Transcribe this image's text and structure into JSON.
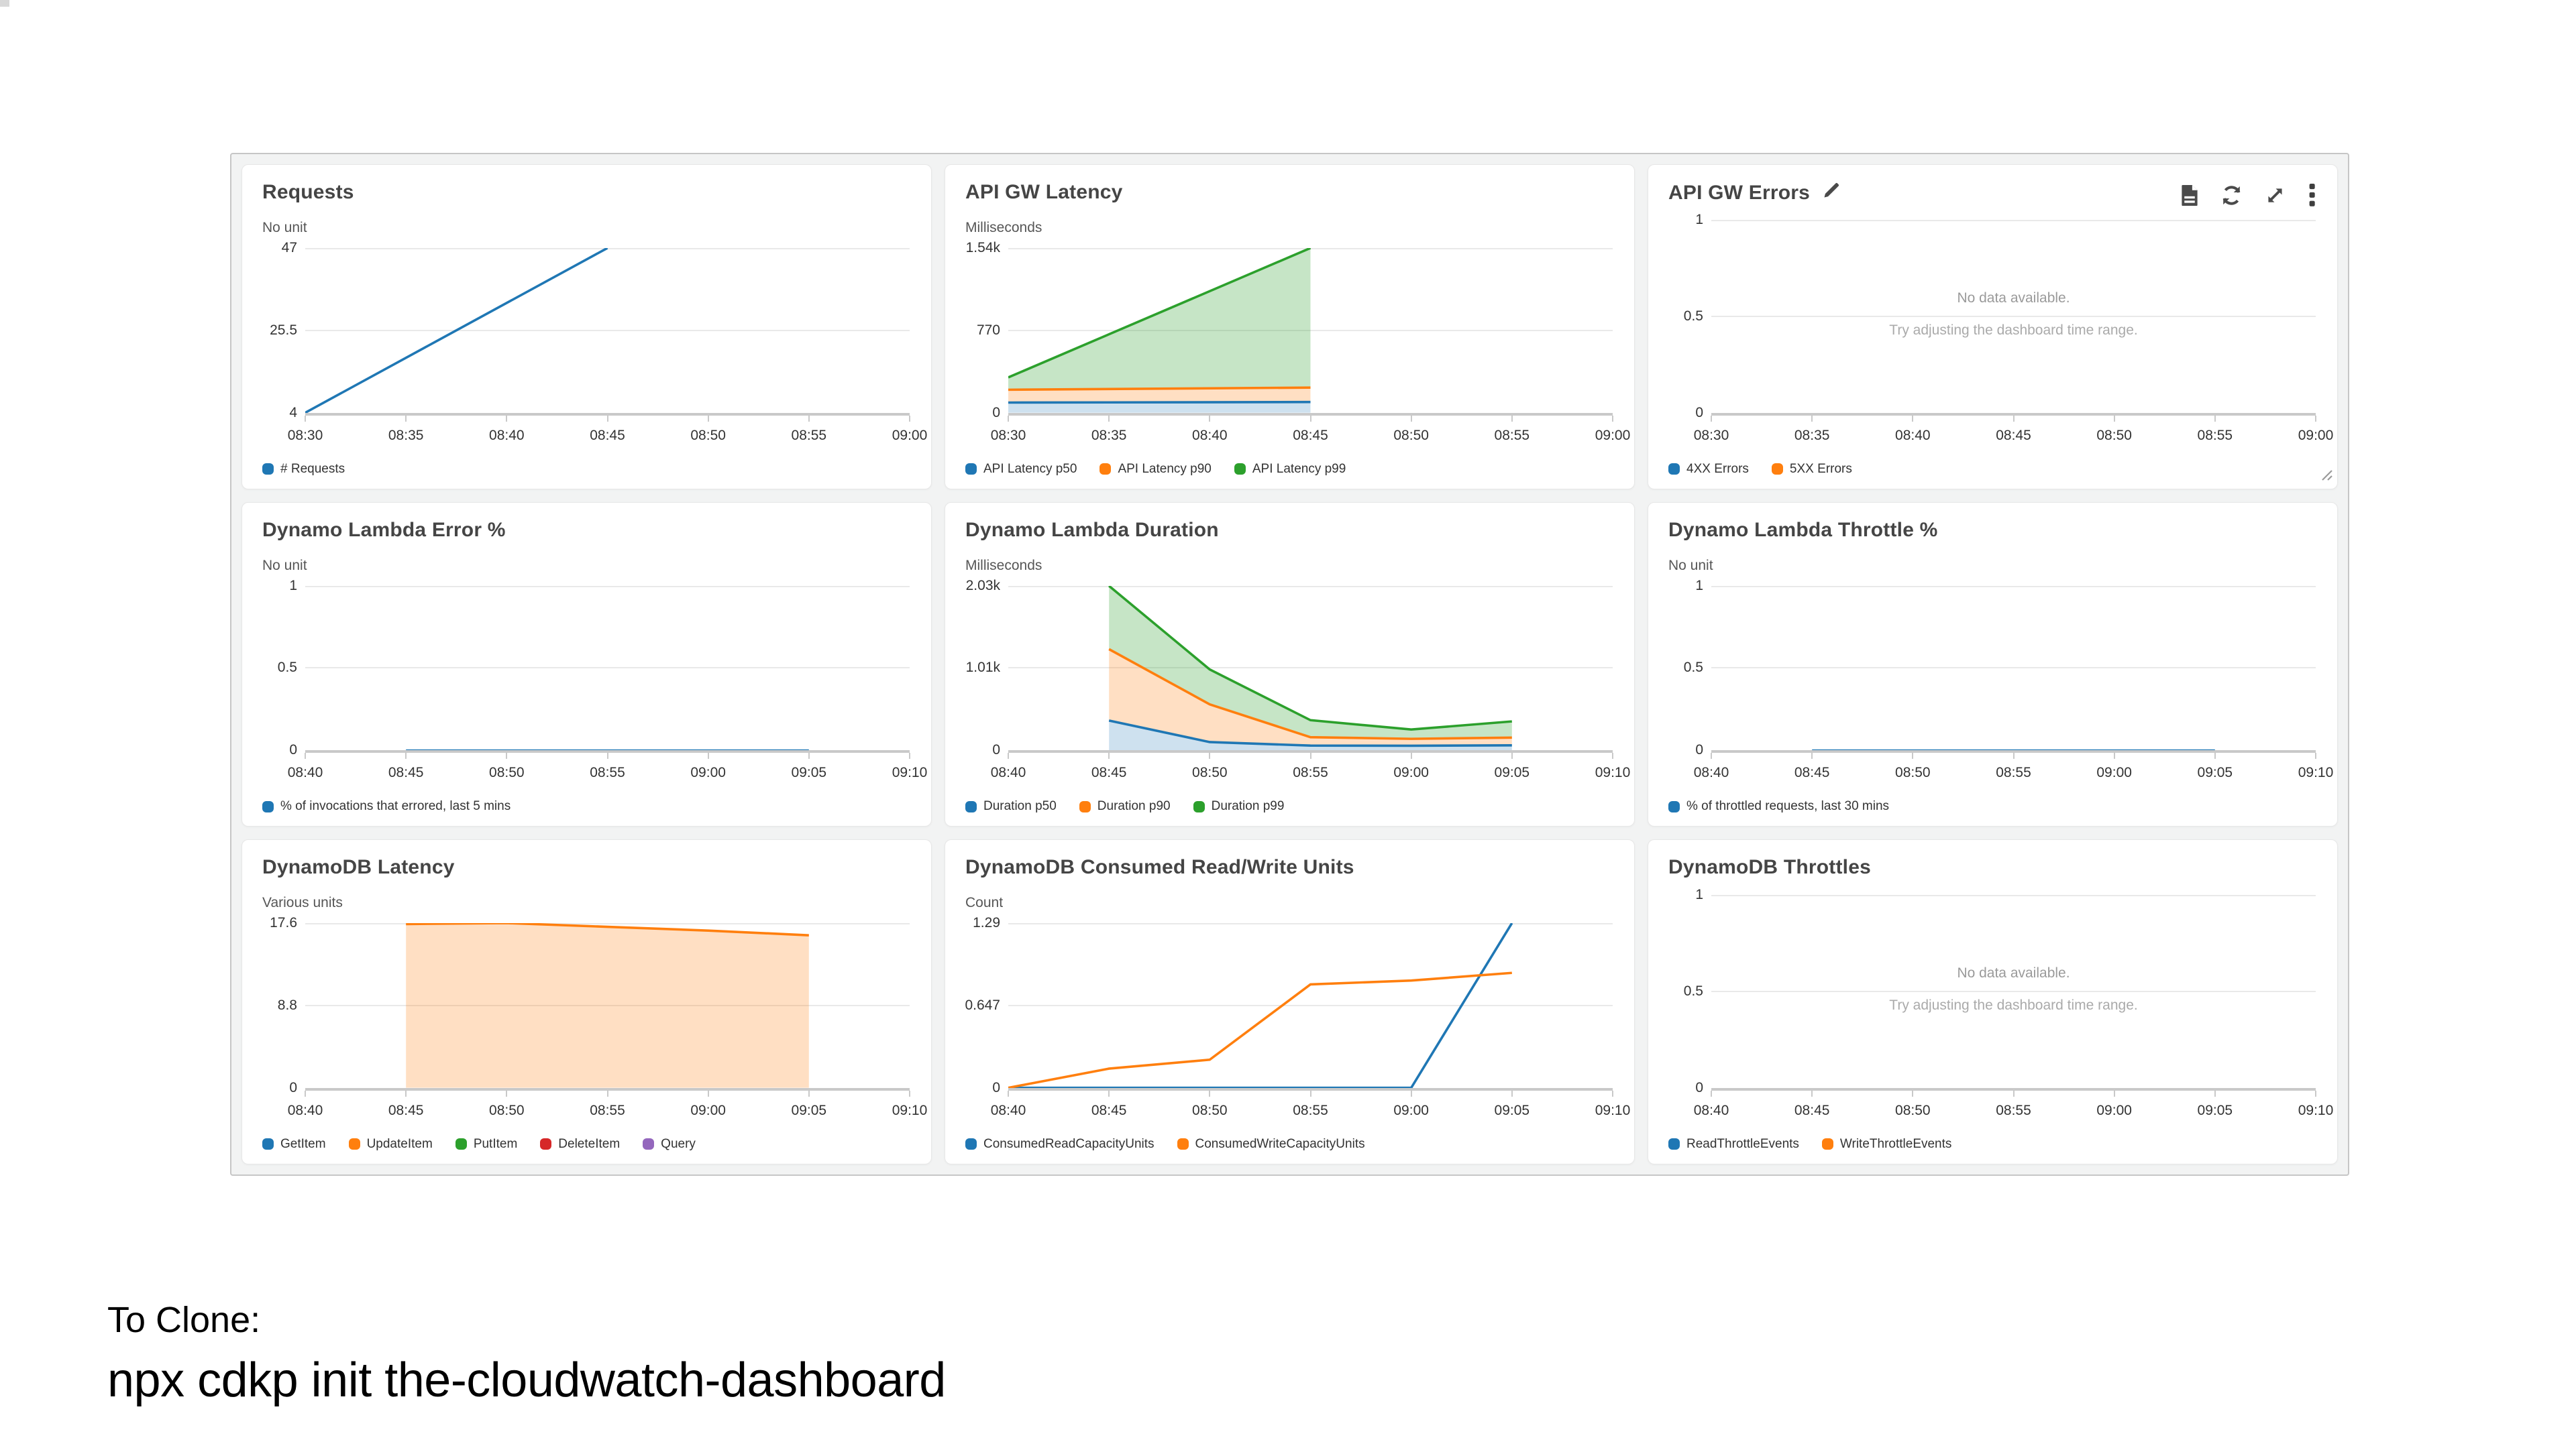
{
  "footer": {
    "line1": "To Clone:",
    "line2": "npx cdkp init the-cloudwatch-dashboard"
  },
  "no_data_text": {
    "line1": "No data available.",
    "line2": "Try adjusting the dashboard time range."
  },
  "colors": {
    "blue": "#1f77b4",
    "orange": "#ff7f0e",
    "green": "#2ca02c",
    "red": "#d62728",
    "purple": "#9467bd"
  },
  "fills": {
    "blue": "rgba(31,119,180,0.22)",
    "orange": "rgba(255,127,14,0.25)",
    "green": "rgba(44,160,44,0.27)"
  },
  "panels": [
    {
      "title": "Requests",
      "unit": "No unit",
      "y_ticks": [
        "47",
        "25.5",
        "4"
      ],
      "y_domain": [
        4,
        47
      ],
      "x_ticks": [
        "08:30",
        "08:35",
        "08:40",
        "08:45",
        "08:50",
        "08:55",
        "09:00"
      ],
      "legend": [
        {
          "label": "# Requests",
          "color": "blue"
        }
      ],
      "chart_data": {
        "type": "line",
        "series": [
          {
            "name": "# Requests",
            "color": "blue",
            "fill": "none",
            "points": [
              [
                "08:30",
                4
              ],
              [
                "08:45",
                47
              ]
            ]
          }
        ]
      }
    },
    {
      "title": "API GW Latency",
      "unit": "Milliseconds",
      "y_ticks": [
        "1.54k",
        "770",
        "0"
      ],
      "y_domain": [
        0,
        1540
      ],
      "x_ticks": [
        "08:30",
        "08:35",
        "08:40",
        "08:45",
        "08:50",
        "08:55",
        "09:00"
      ],
      "legend": [
        {
          "label": "API Latency p50",
          "color": "blue"
        },
        {
          "label": "API Latency p90",
          "color": "orange"
        },
        {
          "label": "API Latency p99",
          "color": "green"
        }
      ],
      "chart_data": {
        "type": "area",
        "series": [
          {
            "name": "API Latency p50",
            "color": "blue",
            "fill": "zero",
            "points": [
              [
                "08:30",
                95
              ],
              [
                "08:45",
                100
              ]
            ]
          },
          {
            "name": "API Latency p90",
            "color": "orange",
            "fill": "band",
            "points": [
              [
                "08:30",
                215
              ],
              [
                "08:45",
                235
              ]
            ]
          },
          {
            "name": "API Latency p99",
            "color": "green",
            "fill": "band",
            "points": [
              [
                "08:30",
                330
              ],
              [
                "08:45",
                1540
              ]
            ]
          }
        ]
      }
    },
    {
      "title": "API GW Errors",
      "title_icon": "pencil-icon",
      "actions": [
        "logs-icon",
        "refresh-icon",
        "expand-icon",
        "kebab-menu-icon"
      ],
      "resize_handle": "resize-handle-icon",
      "unit": null,
      "y_ticks": [
        "1",
        "0.5",
        "0"
      ],
      "y_domain": [
        0,
        1
      ],
      "x_ticks": [
        "08:30",
        "08:35",
        "08:40",
        "08:45",
        "08:50",
        "08:55",
        "09:00"
      ],
      "no_data": true,
      "legend": [
        {
          "label": "4XX Errors",
          "color": "blue"
        },
        {
          "label": "5XX Errors",
          "color": "orange"
        }
      ],
      "chart_data": {
        "type": "line",
        "series": []
      }
    },
    {
      "title": "Dynamo Lambda Error %",
      "unit": "No unit",
      "y_ticks": [
        "1",
        "0.5",
        "0"
      ],
      "y_domain": [
        0,
        1
      ],
      "x_ticks": [
        "08:40",
        "08:45",
        "08:50",
        "08:55",
        "09:00",
        "09:05",
        "09:10"
      ],
      "legend": [
        {
          "label": "% of invocations that errored, last 5 mins",
          "color": "blue"
        }
      ],
      "chart_data": {
        "type": "line",
        "series": [
          {
            "name": "% of invocations that errored, last 5 mins",
            "color": "blue",
            "fill": "none",
            "points": [
              [
                "08:45",
                0
              ],
              [
                "09:05",
                0
              ]
            ]
          }
        ]
      }
    },
    {
      "title": "Dynamo Lambda Duration",
      "unit": "Milliseconds",
      "y_ticks": [
        "2.03k",
        "1.01k",
        "0"
      ],
      "y_domain": [
        0,
        2030
      ],
      "x_ticks": [
        "08:40",
        "08:45",
        "08:50",
        "08:55",
        "09:00",
        "09:05",
        "09:10"
      ],
      "legend": [
        {
          "label": "Duration p50",
          "color": "blue"
        },
        {
          "label": "Duration p90",
          "color": "orange"
        },
        {
          "label": "Duration p99",
          "color": "green"
        }
      ],
      "chart_data": {
        "type": "area",
        "series": [
          {
            "name": "Duration p50",
            "color": "blue",
            "fill": "zero",
            "points": [
              [
                "08:45",
                370
              ],
              [
                "08:50",
                105
              ],
              [
                "08:55",
                62
              ],
              [
                "09:00",
                60
              ],
              [
                "09:05",
                65
              ]
            ]
          },
          {
            "name": "Duration p90",
            "color": "orange",
            "fill": "band",
            "points": [
              [
                "08:45",
                1250
              ],
              [
                "08:50",
                570
              ],
              [
                "08:55",
                165
              ],
              [
                "09:00",
                145
              ],
              [
                "09:05",
                160
              ]
            ]
          },
          {
            "name": "Duration p99",
            "color": "green",
            "fill": "band",
            "points": [
              [
                "08:45",
                2030
              ],
              [
                "08:50",
                1000
              ],
              [
                "08:55",
                375
              ],
              [
                "09:00",
                260
              ],
              [
                "09:05",
                360
              ]
            ]
          }
        ]
      }
    },
    {
      "title": "Dynamo Lambda Throttle %",
      "unit": "No unit",
      "y_ticks": [
        "1",
        "0.5",
        "0"
      ],
      "y_domain": [
        0,
        1
      ],
      "x_ticks": [
        "08:40",
        "08:45",
        "08:50",
        "08:55",
        "09:00",
        "09:05",
        "09:10"
      ],
      "legend": [
        {
          "label": "% of throttled requests, last 30 mins",
          "color": "blue"
        }
      ],
      "chart_data": {
        "type": "line",
        "series": [
          {
            "name": "% of throttled requests, last 30 mins",
            "color": "blue",
            "fill": "none",
            "points": [
              [
                "08:45",
                0
              ],
              [
                "09:05",
                0
              ]
            ]
          }
        ]
      }
    },
    {
      "title": "DynamoDB Latency",
      "unit": "Various units",
      "y_ticks": [
        "17.6",
        "8.8",
        "0"
      ],
      "y_domain": [
        0,
        17.6
      ],
      "x_ticks": [
        "08:40",
        "08:45",
        "08:50",
        "08:55",
        "09:00",
        "09:05",
        "09:10"
      ],
      "legend": [
        {
          "label": "GetItem",
          "color": "blue"
        },
        {
          "label": "UpdateItem",
          "color": "orange"
        },
        {
          "label": "PutItem",
          "color": "green"
        },
        {
          "label": "DeleteItem",
          "color": "red"
        },
        {
          "label": "Query",
          "color": "purple"
        }
      ],
      "chart_data": {
        "type": "area",
        "series": [
          {
            "name": "UpdateItem",
            "color": "orange",
            "fill": "zero",
            "points": [
              [
                "08:45",
                17.5
              ],
              [
                "08:50",
                17.6
              ],
              [
                "08:55",
                17.2
              ],
              [
                "09:00",
                16.8
              ],
              [
                "09:05",
                16.3
              ]
            ]
          }
        ]
      }
    },
    {
      "title": "DynamoDB Consumed Read/Write Units",
      "unit": "Count",
      "y_ticks": [
        "1.29",
        "0.647",
        "0"
      ],
      "y_domain": [
        0,
        1.29
      ],
      "x_ticks": [
        "08:40",
        "08:45",
        "08:50",
        "08:55",
        "09:00",
        "09:05",
        "09:10"
      ],
      "legend": [
        {
          "label": "ConsumedReadCapacityUnits",
          "color": "blue"
        },
        {
          "label": "ConsumedWriteCapacityUnits",
          "color": "orange"
        }
      ],
      "chart_data": {
        "type": "line",
        "series": [
          {
            "name": "ConsumedReadCapacityUnits",
            "color": "blue",
            "fill": "none",
            "points": [
              [
                "08:40",
                0
              ],
              [
                "08:45",
                0
              ],
              [
                "08:50",
                0
              ],
              [
                "08:55",
                0
              ],
              [
                "09:00",
                0
              ],
              [
                "09:05",
                1.29
              ]
            ]
          },
          {
            "name": "ConsumedWriteCapacityUnits",
            "color": "orange",
            "fill": "none",
            "points": [
              [
                "08:40",
                0
              ],
              [
                "08:45",
                0.15
              ],
              [
                "08:50",
                0.22
              ],
              [
                "08:55",
                0.81
              ],
              [
                "09:00",
                0.84
              ],
              [
                "09:05",
                0.9
              ]
            ]
          }
        ]
      }
    },
    {
      "title": "DynamoDB Throttles",
      "unit": null,
      "y_ticks": [
        "1",
        "0.5",
        "0"
      ],
      "y_domain": [
        0,
        1
      ],
      "x_ticks": [
        "08:40",
        "08:45",
        "08:50",
        "08:55",
        "09:00",
        "09:05",
        "09:10"
      ],
      "no_data": true,
      "legend": [
        {
          "label": "ReadThrottleEvents",
          "color": "blue"
        },
        {
          "label": "WriteThrottleEvents",
          "color": "orange"
        }
      ],
      "chart_data": {
        "type": "line",
        "series": []
      }
    }
  ]
}
